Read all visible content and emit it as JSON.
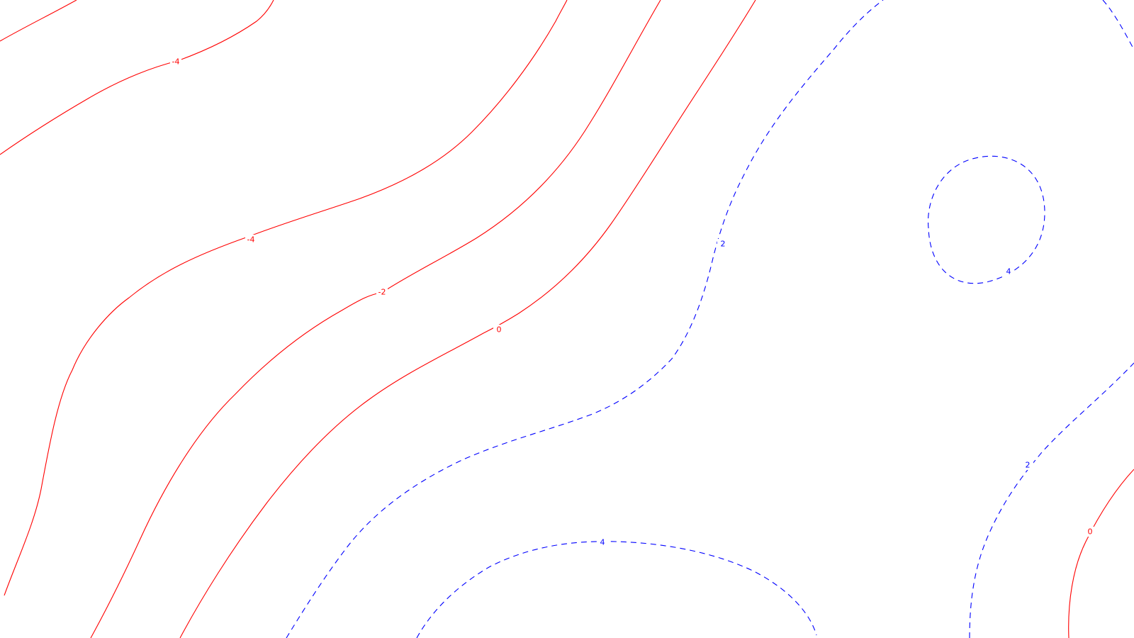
{
  "chart_data": {
    "type": "contour",
    "title": "",
    "xlabel": "",
    "ylabel": "",
    "grid": false,
    "legend": "none",
    "colors": {
      "negative": "#ff0000",
      "zero": "#ff0000",
      "positive": "#0000ff",
      "background": "#ffffff"
    },
    "line_styles": {
      "negative": "solid",
      "zero": "solid",
      "positive": "dashed"
    },
    "levels": [
      -4,
      -2,
      0,
      2,
      4
    ],
    "contours": [
      {
        "id": "upper-neg4",
        "level": -4,
        "sign": "negative",
        "label": "-4"
      },
      {
        "id": "lower-neg4",
        "level": -4,
        "sign": "negative",
        "label": "-4"
      },
      {
        "id": "neg2",
        "level": -2,
        "sign": "negative",
        "label": "-2"
      },
      {
        "id": "zero-main",
        "level": 0,
        "sign": "zero",
        "label": "0"
      },
      {
        "id": "pos2-main",
        "level": 2,
        "sign": "positive",
        "label": "2"
      },
      {
        "id": "pos4-circle",
        "level": 4,
        "sign": "positive",
        "label": "4"
      },
      {
        "id": "pos4-bottom",
        "level": 4,
        "sign": "positive",
        "label": "4"
      },
      {
        "id": "pos2-right",
        "level": 2,
        "sign": "positive",
        "label": "2"
      },
      {
        "id": "zero-right",
        "level": 0,
        "sign": "zero",
        "label": "0"
      },
      {
        "id": "top-right-edge",
        "level": 4,
        "sign": "positive",
        "label": ""
      }
    ]
  }
}
